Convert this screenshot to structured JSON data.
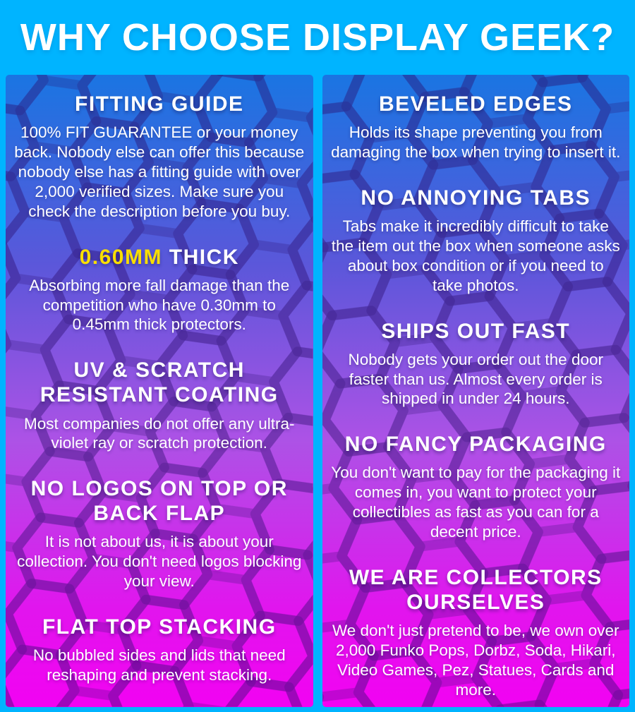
{
  "page": {
    "title": "WHY CHOOSE DISPLAY GEEK?"
  },
  "colors": {
    "frame_cyan": "#00B4FF",
    "heading_text": "#FFFFFF",
    "body_text": "#FFFFFF",
    "highlight_yellow": "#F8DE00",
    "hex_pattern_line": "#2B0C6B",
    "gradient_top": "#1A75E2",
    "gradient_upper_mid": "#5B57DA",
    "gradient_mid": "#AD52E6",
    "gradient_lower": "#E214EE",
    "gradient_bottom": "#F202F2"
  },
  "columns": [
    {
      "name": "left",
      "sections": [
        {
          "heading": "FITTING GUIDE",
          "body": "100% FIT GUARANTEE or your money back. Nobody else can offer this because nobody else has a fitting guide with over 2,000 verified sizes. Make sure you check the description before you buy."
        },
        {
          "heading_highlight": "0.60MM",
          "heading": " THICK",
          "body": "Absorbing more fall damage than the competition who have 0.30mm to 0.45mm thick protectors."
        },
        {
          "heading": "UV & SCRATCH RESISTANT COATING",
          "body": "Most companies do not offer any ultra-violet ray or scratch protection."
        },
        {
          "heading": "NO LOGOS ON TOP OR BACK FLAP",
          "body": "It is not about us, it is about your collection. You don't need logos blocking your view."
        },
        {
          "heading": "FLAT TOP STACKING",
          "body": "No bubbled sides and lids that need reshaping and prevent stacking."
        }
      ]
    },
    {
      "name": "right",
      "sections": [
        {
          "heading": "BEVELED EDGES",
          "body": "Holds its shape preventing you from damaging the box when trying to insert it."
        },
        {
          "heading": "NO ANNOYING TABS",
          "body": "Tabs make it incredibly difficult to take the item out the box when someone asks about box condition or if you need to take photos."
        },
        {
          "heading": "SHIPS OUT FAST",
          "body": "Nobody gets your order out the door faster than us. Almost every order is shipped in under 24 hours."
        },
        {
          "heading": "NO FANCY PACKAGING",
          "body": "You don't want to pay for the packaging it comes in, you want to protect your collectibles as fast as you can for a decent price."
        },
        {
          "heading": "WE ARE COLLECTORS OURSELVES",
          "body": "We don't just pretend to be, we own over 2,000 Funko Pops, Dorbz, Soda, Hikari, Video Games, Pez, Statues, Cards and more."
        }
      ]
    }
  ]
}
